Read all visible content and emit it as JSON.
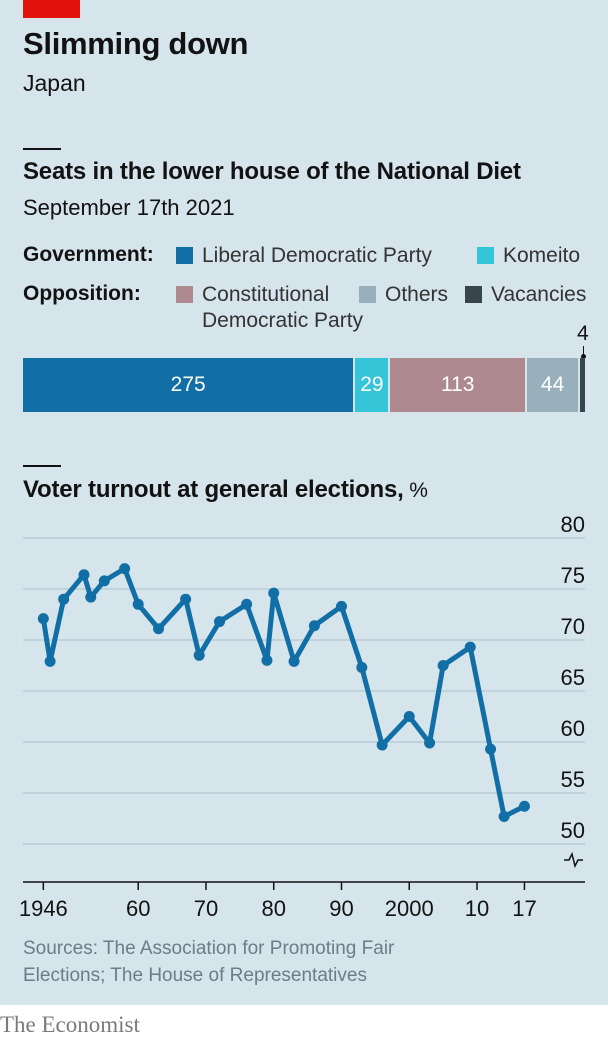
{
  "header": {
    "title": "Slimming down",
    "subtitle": "Japan"
  },
  "seats": {
    "title": "Seats in the lower house of the National Diet",
    "subtitle": "September 17th 2021",
    "government_label": "Government:",
    "opposition_label": "Opposition:",
    "legend": {
      "ldp": "Liberal Democratic Party",
      "komeito": "Komeito",
      "cdp_line1": "Constitutional",
      "cdp_line2": "Democratic Party",
      "others": "Others",
      "vacancies": "Vacancies"
    },
    "colors": {
      "ldp": "#116fa6",
      "komeito": "#35c5d9",
      "cdp": "#ae8a90",
      "others": "#98b0bc",
      "vacancies": "#39454c"
    },
    "labels": {
      "ldp": "275",
      "komeito": "29",
      "cdp": "113",
      "others": "44",
      "vacancies": "4"
    }
  },
  "chart_data": [
    {
      "type": "bar",
      "stacked": true,
      "orientation": "horizontal",
      "categories": [
        "Liberal Democratic Party",
        "Komeito",
        "Constitutional Democratic Party",
        "Others",
        "Vacancies"
      ],
      "values": [
        275,
        29,
        113,
        44,
        4
      ],
      "total": 465
    },
    {
      "type": "line",
      "title": "Voter turnout at general elections",
      "unit": "%",
      "x": [
        1946,
        1947,
        1949,
        1952,
        1953,
        1955,
        1958,
        1960,
        1963,
        1967,
        1969,
        1972,
        1976,
        1979,
        1980,
        1983,
        1986,
        1990,
        1993,
        1996,
        2000,
        2003,
        2005,
        2009,
        2012,
        2014,
        2017
      ],
      "y": [
        72.1,
        67.9,
        74.0,
        76.4,
        74.2,
        75.8,
        77.0,
        73.5,
        71.1,
        74.0,
        68.5,
        71.8,
        73.5,
        68.0,
        74.6,
        67.9,
        71.4,
        73.3,
        67.3,
        59.7,
        62.5,
        59.9,
        67.5,
        69.3,
        59.3,
        52.7,
        53.7
      ],
      "ylim": [
        47,
        80
      ],
      "yticks": [
        50,
        55,
        60,
        65,
        70,
        75,
        80
      ],
      "xlim": [
        1943,
        2019
      ],
      "xticks": [
        1946,
        1960,
        1970,
        1980,
        1990,
        2000,
        2010,
        2017
      ],
      "xtick_labels": [
        "1946",
        "60",
        "70",
        "80",
        "90",
        "2000",
        "10",
        "17"
      ],
      "grid": true,
      "line_color": "#116fa6"
    }
  ],
  "turnout": {
    "title": "Voter turnout at general elections,",
    "unit": " %"
  },
  "source": "Sources: The Association for Promoting Fair Elections; The House of Representatives",
  "brand": "The Economist"
}
